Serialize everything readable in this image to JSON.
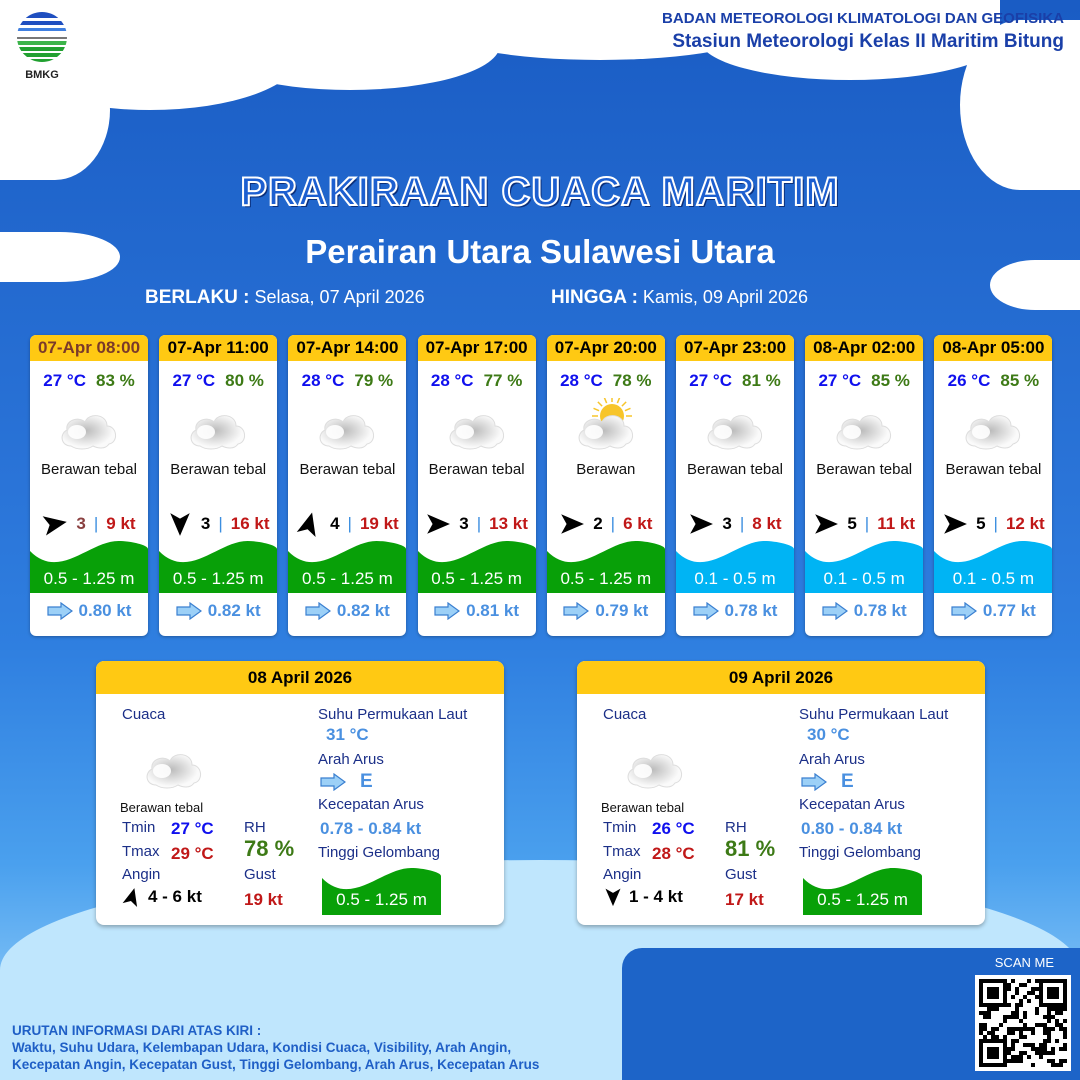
{
  "org": {
    "logo_text": "BMKG",
    "line1": "BADAN METEOROLOGI KLIMATOLOGI DAN GEOFISIKA",
    "line2": "Stasiun Meteorologi Kelas II Maritim Bitung"
  },
  "title": "PRAKIRAAN CUACA MARITIM",
  "subtitle": "Perairan Utara Sulawesi Utara",
  "validity": {
    "from_label": "BERLAKU :",
    "from": "Selasa, 07 April 2026",
    "to_label": "HINGGA :",
    "to": "Kamis, 09 April 2026"
  },
  "colors": {
    "header_yellow": "#ffc913",
    "wave_high": "#08a008",
    "wave_low": "#00b4f4",
    "temp": "#1010ee",
    "rh": "#3d7a16",
    "gust": "#c01818"
  },
  "forecasts": [
    {
      "time": "07-Apr 08:00",
      "temp": "27 °C",
      "rh": "83 %",
      "icon": "cloudy-icon",
      "condition": "Berawan tebal",
      "wind_to_deg": 80,
      "wind": "3",
      "gust": "9 kt",
      "wave": "0.5 - 1.25 m",
      "wave_level": "high",
      "current": "0.80 kt"
    },
    {
      "time": "07-Apr 11:00",
      "temp": "27 °C",
      "rh": "80 %",
      "icon": "cloudy-icon",
      "condition": "Berawan tebal",
      "wind_to_deg": 180,
      "wind": "3",
      "gust": "16 kt",
      "wave": "0.5 - 1.25 m",
      "wave_level": "high",
      "current": "0.82 kt"
    },
    {
      "time": "07-Apr 14:00",
      "temp": "28 °C",
      "rh": "79 %",
      "icon": "cloudy-icon",
      "condition": "Berawan tebal",
      "wind_to_deg": 15,
      "wind": "4",
      "gust": "19 kt",
      "wave": "0.5 - 1.25 m",
      "wave_level": "high",
      "current": "0.82 kt"
    },
    {
      "time": "07-Apr 17:00",
      "temp": "28 °C",
      "rh": "77 %",
      "icon": "cloudy-icon",
      "condition": "Berawan tebal",
      "wind_to_deg": 90,
      "wind": "3",
      "gust": "13 kt",
      "wave": "0.5 - 1.25 m",
      "wave_level": "high",
      "current": "0.81 kt"
    },
    {
      "time": "07-Apr 20:00",
      "temp": "28 °C",
      "rh": "78 %",
      "icon": "partly-cloudy-icon",
      "condition": "Berawan",
      "wind_to_deg": 90,
      "wind": "2",
      "gust": "6 kt",
      "wave": "0.5 - 1.25 m",
      "wave_level": "high",
      "current": "0.79 kt"
    },
    {
      "time": "07-Apr 23:00",
      "temp": "27 °C",
      "rh": "81 %",
      "icon": "cloudy-icon",
      "condition": "Berawan tebal",
      "wind_to_deg": 90,
      "wind": "3",
      "gust": "8 kt",
      "wave": "0.1 - 0.5 m",
      "wave_level": "low",
      "current": "0.78 kt"
    },
    {
      "time": "08-Apr 02:00",
      "temp": "27 °C",
      "rh": "85 %",
      "icon": "cloudy-icon",
      "condition": "Berawan tebal",
      "wind_to_deg": 90,
      "wind": "5",
      "gust": "11 kt",
      "wave": "0.1 - 0.5 m",
      "wave_level": "low",
      "current": "0.78 kt"
    },
    {
      "time": "08-Apr 05:00",
      "temp": "26 °C",
      "rh": "85 %",
      "icon": "cloudy-icon",
      "condition": "Berawan tebal",
      "wind_to_deg": 90,
      "wind": "5",
      "gust": "12 kt",
      "wave": "0.1 - 0.5 m",
      "wave_level": "low",
      "current": "0.77 kt"
    }
  ],
  "labels": {
    "cuaca": "Cuaca",
    "sst": "Suhu Permukaan Laut",
    "arah": "Arah Arus",
    "kec": "Kecepatan Arus",
    "tinggi": "Tinggi Gelombang",
    "tmin": "Tmin",
    "tmax": "Tmax",
    "rh": "RH",
    "angin": "Angin",
    "gust": "Gust"
  },
  "daily": [
    {
      "date": "08 April 2026",
      "condition": "Berawan tebal",
      "tmin": "27 °C",
      "tmax": "29 °C",
      "rh": "78 %",
      "wind_to_deg": 15,
      "wind": "4  - 6 kt",
      "gust": "19 kt",
      "sst": "31 °C",
      "current_dir": "E",
      "current_speed": "0.78  - 0.84 kt",
      "wave": "0.5 - 1.25 m"
    },
    {
      "date": "09 April 2026",
      "condition": "Berawan tebal",
      "tmin": "26 °C",
      "tmax": "28 °C",
      "rh": "81 %",
      "wind_to_deg": 180,
      "wind": "1  - 4 kt",
      "gust": "17 kt",
      "sst": "30 °C",
      "current_dir": "E",
      "current_speed": "0.80  - 0.84 kt",
      "wave": "0.5 - 1.25 m"
    }
  ],
  "footer": {
    "heading": "URUTAN INFORMASI DARI ATAS KIRI :",
    "line1": "Waktu, Suhu Udara, Kelembapan Udara, Kondisi Cuaca, Visibility, Arah Angin,",
    "line2": "Kecepatan Angin, Kecepatan Gust, Tinggi Gelombang, Arah Arus, Kecepatan Arus"
  },
  "qr": {
    "label": "SCAN ME"
  }
}
